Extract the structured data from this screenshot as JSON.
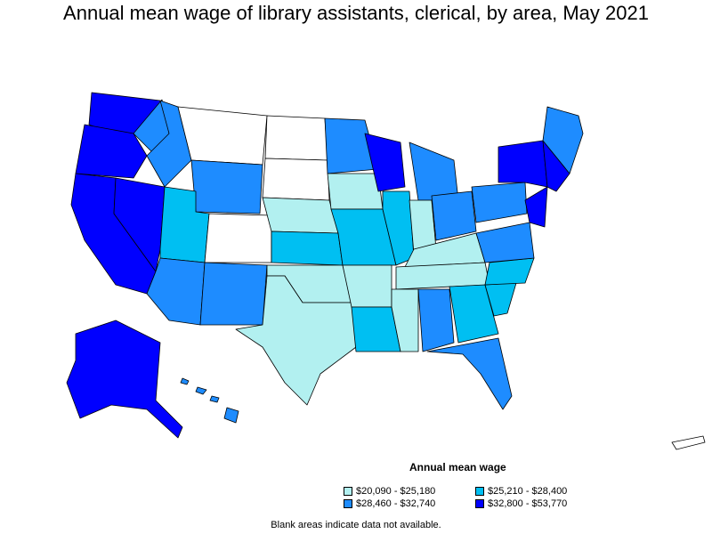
{
  "title": "Annual mean wage of library assistants, clerical, by area, May 2021",
  "legend": {
    "title": "Annual mean wage",
    "items": [
      {
        "label": "$20,090 - $25,180",
        "color": "#b2f0f0"
      },
      {
        "label": "$25,210 - $28,400",
        "color": "#00bff2"
      },
      {
        "label": "$28,460 - $32,740",
        "color": "#1e8cff"
      },
      {
        "label": "$32,800 - $53,770",
        "color": "#0000ff"
      }
    ]
  },
  "footnote": "Blank areas indicate data not available.",
  "colors": {
    "no_data": "#ffffff",
    "border": "#000000"
  }
}
